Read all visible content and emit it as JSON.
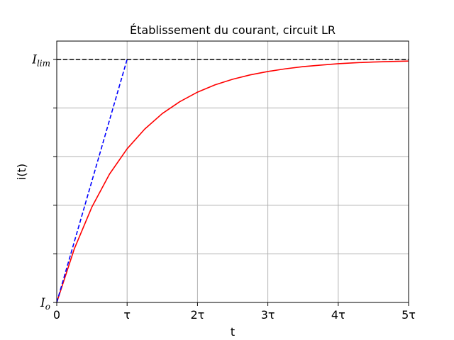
{
  "chart_data": {
    "type": "line",
    "title": "Établissement du courant, circuit LR",
    "xlabel": "t",
    "ylabel": "i(t)",
    "xlim": [
      0,
      5
    ],
    "ylim": [
      0,
      1
    ],
    "grid": true,
    "x_ticks": [
      {
        "value": 0,
        "label": "0"
      },
      {
        "value": 1,
        "label": "τ"
      },
      {
        "value": 2,
        "label": "2τ"
      },
      {
        "value": 3,
        "label": "3τ"
      },
      {
        "value": 4,
        "label": "4τ"
      },
      {
        "value": 5,
        "label": "5τ"
      }
    ],
    "y_ticks": [
      {
        "value": 0,
        "main": "I",
        "sub": "o"
      },
      {
        "value": 0.2,
        "main": "",
        "sub": ""
      },
      {
        "value": 0.4,
        "main": "",
        "sub": ""
      },
      {
        "value": 0.6,
        "main": "",
        "sub": ""
      },
      {
        "value": 0.8,
        "main": "",
        "sub": ""
      },
      {
        "value": 1,
        "main": "I",
        "sub": "lim"
      }
    ],
    "series": [
      {
        "color": "#ff0000",
        "style": "solid",
        "x": [
          0,
          0.25,
          0.5,
          0.75,
          1,
          1.25,
          1.5,
          1.75,
          2,
          2.25,
          2.5,
          2.75,
          3,
          3.25,
          3.5,
          3.75,
          4,
          4.25,
          4.5,
          4.75,
          5
        ],
        "y": [
          0,
          0.221,
          0.393,
          0.528,
          0.632,
          0.713,
          0.777,
          0.826,
          0.865,
          0.895,
          0.918,
          0.936,
          0.95,
          0.961,
          0.97,
          0.976,
          0.982,
          0.986,
          0.989,
          0.991,
          0.993
        ]
      },
      {
        "color": "#0000ff",
        "style": "dashed",
        "x": [
          0,
          1
        ],
        "y": [
          0,
          1
        ]
      },
      {
        "color": "#000000",
        "style": "dashed",
        "x": [
          0,
          5
        ],
        "y": [
          1,
          1
        ]
      }
    ]
  }
}
